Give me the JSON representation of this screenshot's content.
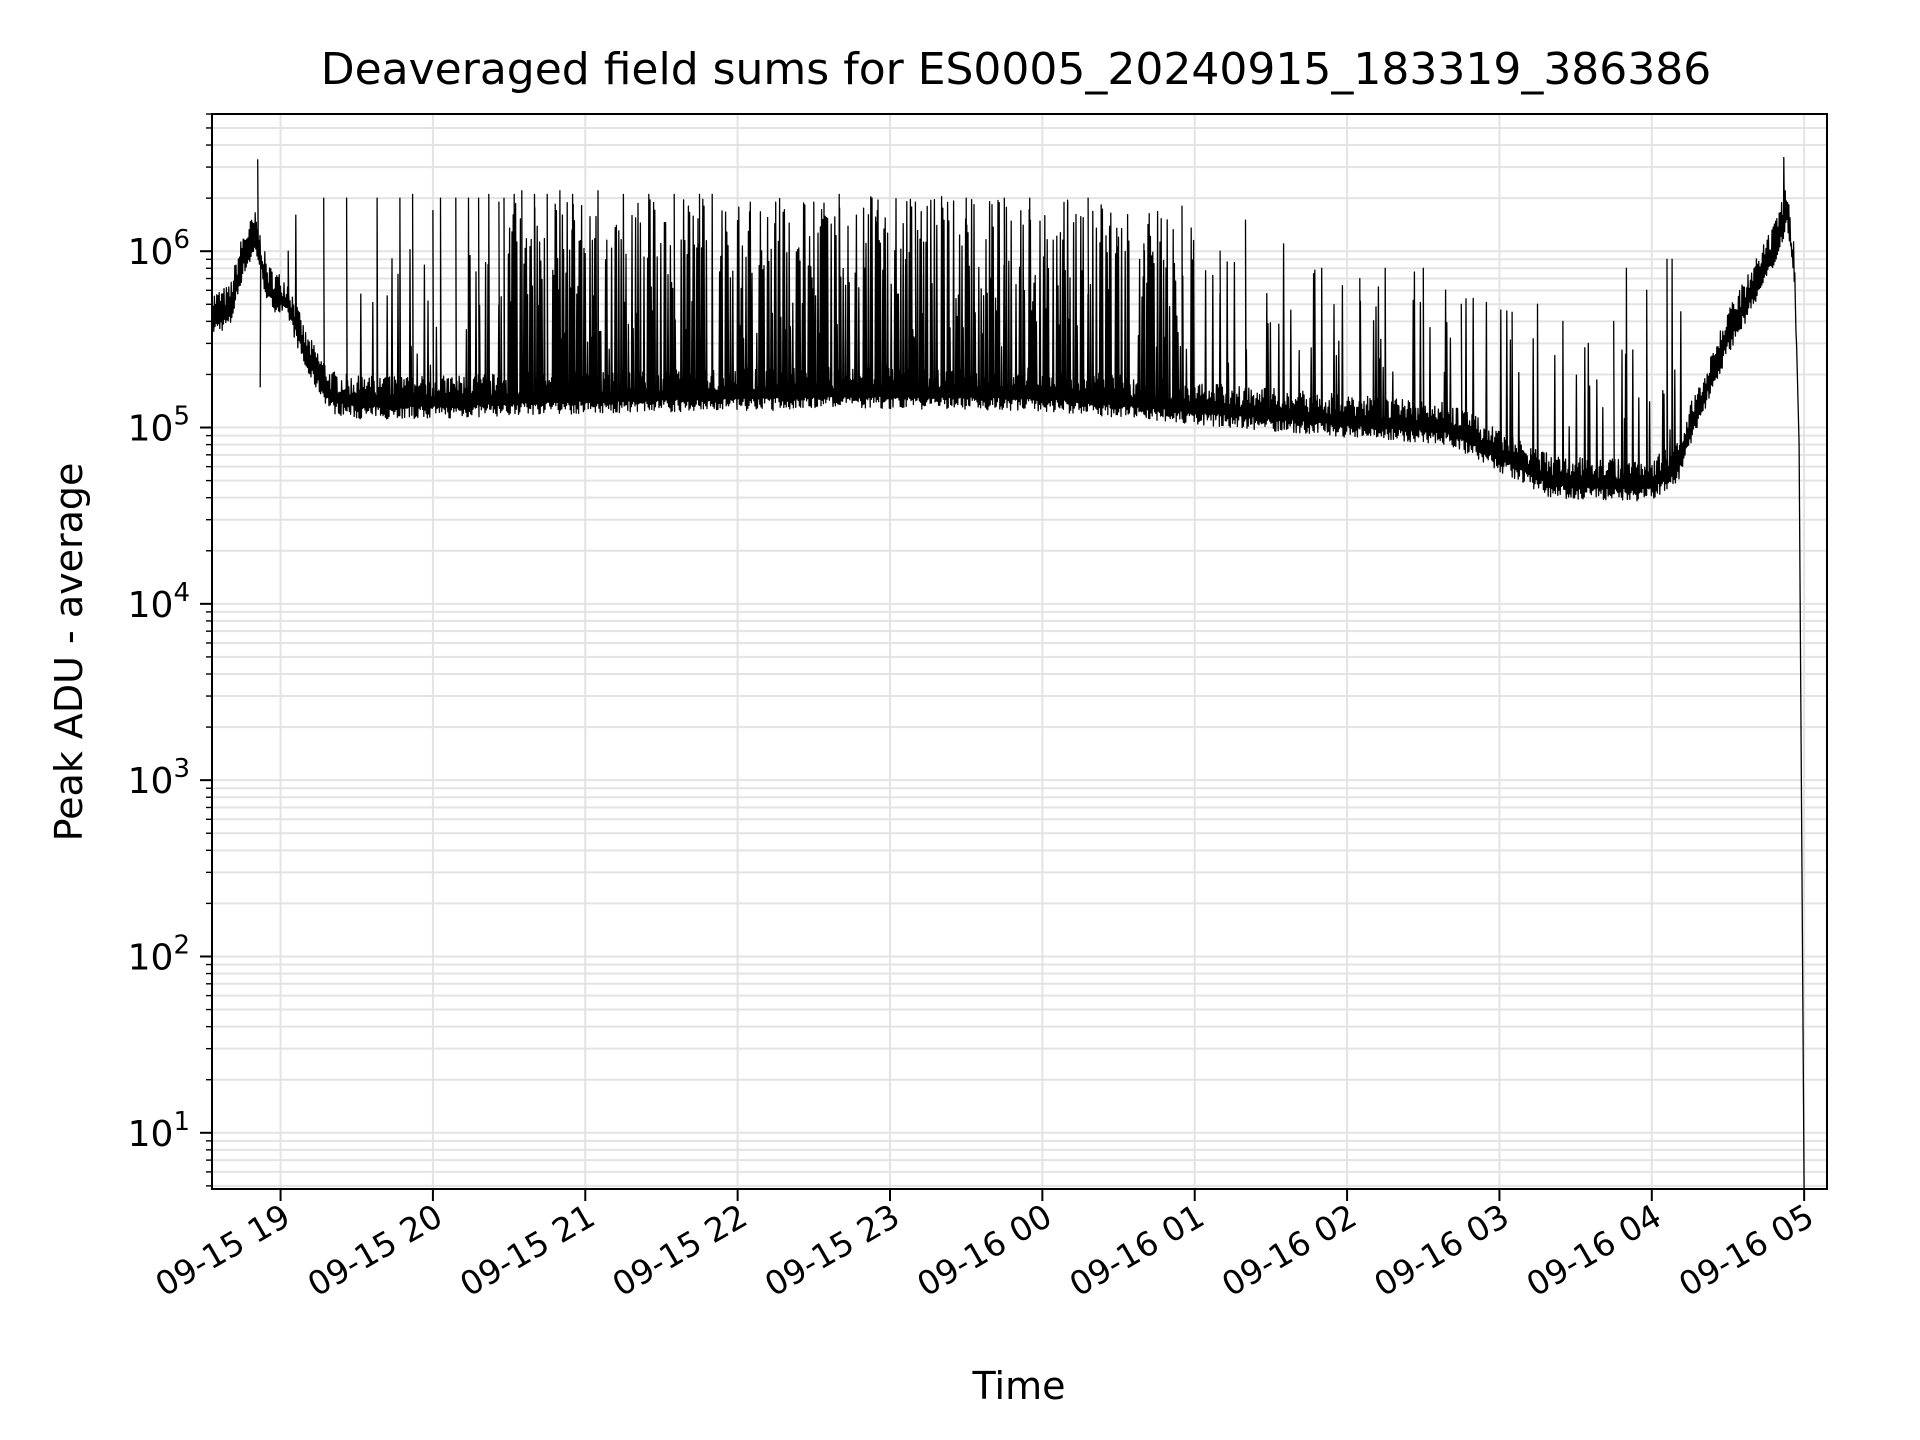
{
  "chart_data": {
    "type": "line",
    "title": "Deaveraged field sums for ES0005_20240915_183319_386386",
    "xlabel": "Time",
    "ylabel": "Peak ADU - average",
    "y_scale": "log",
    "ylim": [
      4.8,
      6000000
    ],
    "xlim": [
      "2024-09-15 18:33",
      "2024-09-16 05:09"
    ],
    "grid": true,
    "line_color": "#000000",
    "x_ticks": [
      {
        "t": "2024-09-15 19:00",
        "label": "09-15 19"
      },
      {
        "t": "2024-09-15 20:00",
        "label": "09-15 20"
      },
      {
        "t": "2024-09-15 21:00",
        "label": "09-15 21"
      },
      {
        "t": "2024-09-15 22:00",
        "label": "09-15 22"
      },
      {
        "t": "2024-09-15 23:00",
        "label": "09-15 23"
      },
      {
        "t": "2024-09-16 00:00",
        "label": "09-16 00"
      },
      {
        "t": "2024-09-16 01:00",
        "label": "09-16 01"
      },
      {
        "t": "2024-09-16 02:00",
        "label": "09-16 02"
      },
      {
        "t": "2024-09-16 03:00",
        "label": "09-16 03"
      },
      {
        "t": "2024-09-16 04:00",
        "label": "09-16 04"
      },
      {
        "t": "2024-09-16 05:00",
        "label": "09-16 05"
      }
    ],
    "y_ticks": [
      {
        "value": 10,
        "base": "10",
        "exp": "1"
      },
      {
        "value": 100,
        "base": "10",
        "exp": "2"
      },
      {
        "value": 1000,
        "base": "10",
        "exp": "3"
      },
      {
        "value": 10000,
        "base": "10",
        "exp": "4"
      },
      {
        "value": 100000,
        "base": "10",
        "exp": "5"
      },
      {
        "value": 1000000,
        "base": "10",
        "exp": "6"
      }
    ],
    "baseline": [
      [
        "2024-09-15 18:33",
        420000
      ],
      [
        "2024-09-15 18:40",
        460000
      ],
      [
        "2024-09-15 18:45",
        900000
      ],
      [
        "2024-09-15 18:50",
        1200000
      ],
      [
        "2024-09-15 18:55",
        600000
      ],
      [
        "2024-09-15 19:03",
        500000
      ],
      [
        "2024-09-15 19:10",
        250000
      ],
      [
        "2024-09-15 19:20",
        150000
      ],
      [
        "2024-09-15 19:30",
        140000
      ],
      [
        "2024-09-15 20:00",
        140000
      ],
      [
        "2024-09-15 21:00",
        150000
      ],
      [
        "2024-09-15 22:00",
        155000
      ],
      [
        "2024-09-15 23:00",
        160000
      ],
      [
        "2024-09-16 00:00",
        155000
      ],
      [
        "2024-09-16 01:00",
        130000
      ],
      [
        "2024-09-16 02:00",
        110000
      ],
      [
        "2024-09-16 02:40",
        100000
      ],
      [
        "2024-09-16 03:00",
        70000
      ],
      [
        "2024-09-16 03:20",
        50000
      ],
      [
        "2024-09-16 03:40",
        48000
      ],
      [
        "2024-09-16 04:00",
        48000
      ],
      [
        "2024-09-16 04:10",
        60000
      ],
      [
        "2024-09-16 04:20",
        150000
      ],
      [
        "2024-09-16 04:30",
        330000
      ],
      [
        "2024-09-16 04:40",
        600000
      ],
      [
        "2024-09-16 04:48",
        1000000
      ],
      [
        "2024-09-16 04:53",
        1700000
      ],
      [
        "2024-09-16 04:56",
        800000
      ],
      [
        "2024-09-16 04:58",
        80000
      ],
      [
        "2024-09-16 05:00",
        4.8
      ]
    ],
    "spikes": [
      [
        "2024-09-15 18:51",
        3300000
      ],
      [
        "2024-09-15 18:52",
        170000
      ],
      [
        "2024-09-15 19:03",
        1000000
      ],
      [
        "2024-09-15 19:06",
        1600000
      ],
      [
        "2024-09-15 19:17",
        2000000
      ],
      [
        "2024-09-15 19:26",
        2000000
      ],
      [
        "2024-09-15 19:38",
        2000000
      ],
      [
        "2024-09-15 19:47",
        2000000
      ],
      [
        "2024-09-15 19:52",
        2100000
      ],
      [
        "2024-09-15 20:00",
        1700000
      ],
      [
        "2024-09-15 20:03",
        2000000
      ],
      [
        "2024-09-15 20:09",
        2000000
      ],
      [
        "2024-09-15 20:14",
        2000000
      ],
      [
        "2024-09-15 20:18",
        2000000
      ],
      [
        "2024-09-15 20:22",
        2100000
      ],
      [
        "2024-09-15 20:26",
        1900000
      ],
      [
        "2024-09-15 20:28",
        2000000
      ],
      [
        "2024-09-15 20:32",
        2100000
      ],
      [
        "2024-09-15 20:35",
        2200000
      ],
      [
        "2024-09-15 20:40",
        2100000
      ],
      [
        "2024-09-15 20:45",
        2100000
      ],
      [
        "2024-09-15 20:50",
        2200000
      ],
      [
        "2024-09-15 20:55",
        2100000
      ],
      [
        "2024-09-15 21:05",
        2200000
      ],
      [
        "2024-09-15 21:15",
        2100000
      ],
      [
        "2024-09-15 21:25",
        2100000
      ],
      [
        "2024-09-15 21:35",
        2100000
      ],
      [
        "2024-09-15 21:45",
        2100000
      ],
      [
        "2024-09-15 21:50",
        2100000
      ],
      [
        "2024-09-15 22:05",
        1900000
      ],
      [
        "2024-09-15 22:15",
        1900000
      ],
      [
        "2024-09-15 22:30",
        1900000
      ],
      [
        "2024-09-15 22:40",
        2100000
      ],
      [
        "2024-09-15 22:55",
        1700000
      ],
      [
        "2024-09-15 23:10",
        1900000
      ],
      [
        "2024-09-15 23:30",
        2000000
      ],
      [
        "2024-09-15 23:45",
        2000000
      ],
      [
        "2024-09-15 23:55",
        2000000
      ],
      [
        "2024-09-16 00:10",
        1900000
      ],
      [
        "2024-09-16 00:18",
        2000000
      ],
      [
        "2024-09-16 00:30",
        1200000
      ],
      [
        "2024-09-16 00:40",
        1100000
      ],
      [
        "2024-09-16 00:55",
        1800000
      ],
      [
        "2024-09-16 01:10",
        1000000
      ],
      [
        "2024-09-16 01:20",
        1500000
      ],
      [
        "2024-09-16 01:35",
        1100000
      ],
      [
        "2024-09-16 01:50",
        800000
      ],
      [
        "2024-09-16 02:05",
        700000
      ],
      [
        "2024-09-16 02:15",
        800000
      ],
      [
        "2024-09-16 02:30",
        800000
      ],
      [
        "2024-09-16 02:45",
        500000
      ],
      [
        "2024-09-16 03:05",
        450000
      ],
      [
        "2024-09-16 03:15",
        500000
      ],
      [
        "2024-09-16 03:25",
        400000
      ],
      [
        "2024-09-16 03:35",
        300000
      ],
      [
        "2024-09-16 03:45",
        400000
      ],
      [
        "2024-09-16 03:50",
        800000
      ],
      [
        "2024-09-16 03:58",
        600000
      ],
      [
        "2024-09-16 04:06",
        900000
      ],
      [
        "2024-09-16 04:08",
        900000
      ],
      [
        "2024-09-16 04:52",
        3400000
      ]
    ]
  }
}
